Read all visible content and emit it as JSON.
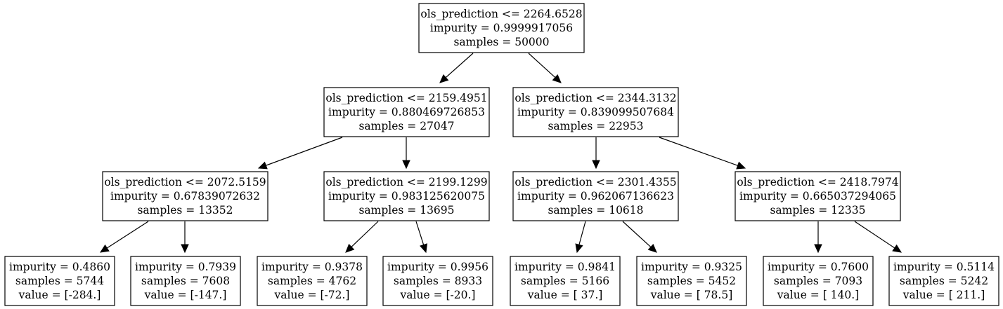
{
  "tree": {
    "nodes": [
      {
        "id": "n0",
        "lines": [
          "ols_prediction <= 2264.6528",
          "impurity = 0.9999917056",
          "samples = 50000"
        ]
      },
      {
        "id": "n1",
        "lines": [
          "ols_prediction <= 2159.4951",
          "impurity = 0.880469726853",
          "samples = 27047"
        ]
      },
      {
        "id": "n2",
        "lines": [
          "ols_prediction <= 2344.3132",
          "impurity = 0.839099507684",
          "samples = 22953"
        ]
      },
      {
        "id": "n3",
        "lines": [
          "ols_prediction <= 2072.5159",
          "impurity = 0.67839072632",
          "samples = 13352"
        ]
      },
      {
        "id": "n4",
        "lines": [
          "ols_prediction <= 2199.1299",
          "impurity = 0.983125620075",
          "samples = 13695"
        ]
      },
      {
        "id": "n5",
        "lines": [
          "ols_prediction <= 2301.4355",
          "impurity = 0.962067136623",
          "samples = 10618"
        ]
      },
      {
        "id": "n6",
        "lines": [
          "ols_prediction <= 2418.7974",
          "impurity = 0.665037294065",
          "samples = 12335"
        ]
      },
      {
        "id": "n7",
        "lines": [
          "impurity = 0.4860",
          "samples = 5744",
          "value = [-284.]"
        ]
      },
      {
        "id": "n8",
        "lines": [
          "impurity = 0.7939",
          "samples = 7608",
          "value = [-147.]"
        ]
      },
      {
        "id": "n9",
        "lines": [
          "impurity = 0.9378",
          "samples = 4762",
          "value = [-72.]"
        ]
      },
      {
        "id": "n10",
        "lines": [
          "impurity = 0.9956",
          "samples = 8933",
          "value = [-20.]"
        ]
      },
      {
        "id": "n11",
        "lines": [
          "impurity = 0.9841",
          "samples = 5166",
          "value = [ 37.]"
        ]
      },
      {
        "id": "n12",
        "lines": [
          "impurity = 0.9325",
          "samples = 5452",
          "value = [ 78.5]"
        ]
      },
      {
        "id": "n13",
        "lines": [
          "impurity = 0.7600",
          "samples = 7093",
          "value = [ 140.]"
        ]
      },
      {
        "id": "n14",
        "lines": [
          "impurity = 0.5114",
          "samples = 5242",
          "value = [ 211.]"
        ]
      }
    ],
    "edges": [
      {
        "from": "n0",
        "to": "n1"
      },
      {
        "from": "n0",
        "to": "n2"
      },
      {
        "from": "n1",
        "to": "n3"
      },
      {
        "from": "n1",
        "to": "n4"
      },
      {
        "from": "n2",
        "to": "n5"
      },
      {
        "from": "n2",
        "to": "n6"
      },
      {
        "from": "n3",
        "to": "n7"
      },
      {
        "from": "n3",
        "to": "n8"
      },
      {
        "from": "n4",
        "to": "n9"
      },
      {
        "from": "n4",
        "to": "n10"
      },
      {
        "from": "n5",
        "to": "n11"
      },
      {
        "from": "n5",
        "to": "n12"
      },
      {
        "from": "n6",
        "to": "n13"
      },
      {
        "from": "n6",
        "to": "n14"
      }
    ]
  }
}
